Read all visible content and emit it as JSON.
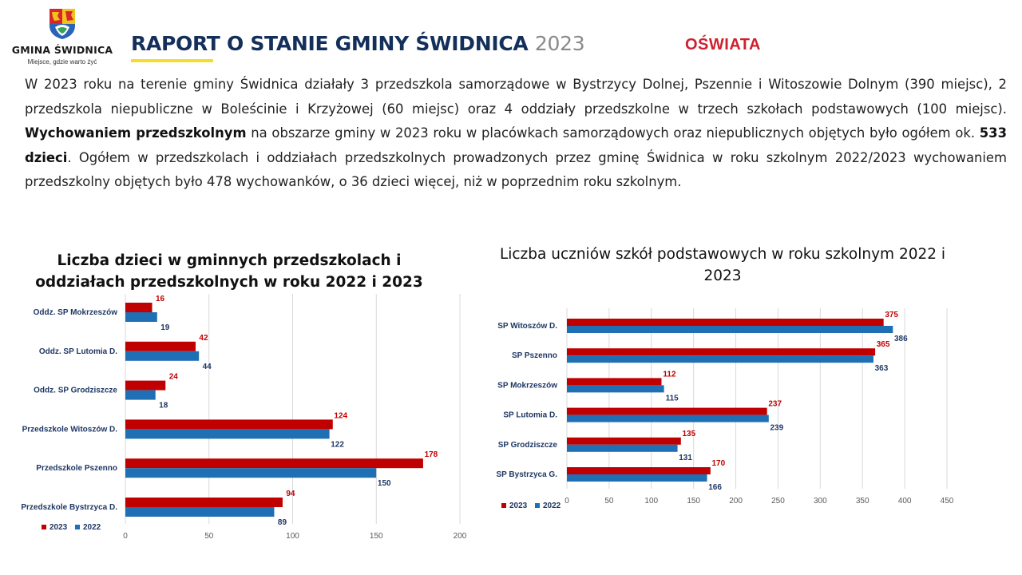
{
  "logo": {
    "name": "GMINA ŚWIDNICA",
    "tagline": "Miejsce, gdzie warto żyć"
  },
  "header": {
    "title": "RAPORT O STANIE GMINY ŚWIDNICA",
    "year": "2023",
    "section": "OŚWIATA"
  },
  "intro": {
    "p1": "W 2023 roku na terenie gminy Świdnica działały 3 przedszkola samorządowe w Bystrzycy Dolnej, Pszennie i Witoszowie Dolnym (390 miejsc), 2 przedszkola niepubliczne w Boleścinie i Krzyżowej (60 miejsc) oraz 4 oddziały przedszkolne w trzech szkołach podstawowych (100 miejsc). ",
    "b1": "Wychowaniem przedszkolnym",
    "p2": " na obszarze gminy w 2023 roku w placówkach samorządowych oraz niepublicznych objętych było ogółem ok. ",
    "b2": "533 dzieci",
    "p3": ". Ogółem w przedszkolach i oddziałach przedszkolnych prowadzonych przez gminę Świdnica w roku szkolnym 2022/2023 wychowaniem przedszkolny objętych było 478 wychowanków, o 36 dzieci więcej, niż w poprzednim  roku szkolnym."
  },
  "colors": {
    "s2023": "#c00000",
    "s2022": "#1f6fb5",
    "title": "#14305a",
    "accent": "#d0202e",
    "underline": "#f3df2b"
  },
  "chart_data": [
    {
      "type": "bar",
      "orientation": "horizontal",
      "title": "Liczba dzieci w gminnych przedszkolach i oddziałach przedszkolnych w roku 2022 i 2023",
      "categories": [
        "Oddz. SP Mokrzeszów",
        "Oddz. SP Lutomia D.",
        "Oddz. SP Grodziszcze",
        "Przedszkole Witoszów D.",
        "Przedszkole Pszenno",
        "Przedszkole Bystrzyca D."
      ],
      "series": [
        {
          "name": "2023",
          "values": [
            16,
            42,
            24,
            124,
            178,
            94
          ]
        },
        {
          "name": "2022",
          "values": [
            19,
            44,
            18,
            122,
            150,
            89
          ]
        }
      ],
      "xlim": [
        0,
        200
      ],
      "ticks": [
        0,
        50,
        100,
        150,
        200
      ],
      "grid": true,
      "legend": "bottom-left"
    },
    {
      "type": "bar",
      "orientation": "horizontal",
      "title": "Liczba uczniów szkół podstawowych w roku szkolnym 2022 i 2023",
      "categories": [
        "SP Witoszów D.",
        "SP Pszenno",
        "SP Mokrzeszów",
        "SP Lutomia D.",
        "SP Grodziszcze",
        "SP Bystrzyca G."
      ],
      "series": [
        {
          "name": "2023",
          "values": [
            375,
            365,
            112,
            237,
            135,
            170
          ]
        },
        {
          "name": "2022",
          "values": [
            386,
            363,
            115,
            239,
            131,
            166
          ]
        }
      ],
      "xlim": [
        0,
        450
      ],
      "ticks": [
        0,
        50,
        100,
        150,
        200,
        250,
        300,
        350,
        400,
        450
      ],
      "grid": true,
      "legend": "bottom-left"
    }
  ]
}
